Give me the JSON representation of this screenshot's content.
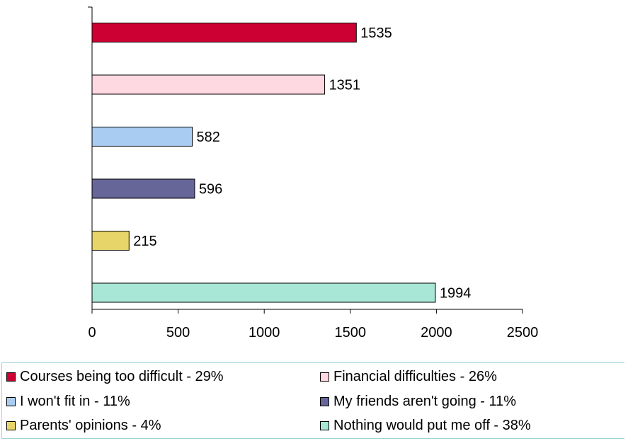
{
  "chart_data": {
    "type": "bar",
    "orientation": "horizontal",
    "categories": [
      "Courses being too difficult",
      "Financial difficulties",
      "I won't fit in",
      "My friends aren't going",
      "Parents' opinions",
      "Nothing would put me off"
    ],
    "values": [
      1535,
      1351,
      582,
      596,
      215,
      1994
    ],
    "data_labels": [
      "1535",
      "1351",
      "582",
      "596",
      "215",
      "1994"
    ],
    "colors": [
      "#cc0033",
      "#ffd9e1",
      "#a8ccf2",
      "#666699",
      "#e8d56a",
      "#a8e6d6"
    ],
    "xlim": [
      0,
      2500
    ],
    "xticks": [
      0,
      500,
      1000,
      1500,
      2000,
      2500
    ],
    "xtick_labels": [
      "0",
      "500",
      "1000",
      "1500",
      "2000",
      "2500"
    ],
    "grid": false,
    "legend_position": "bottom",
    "legend": [
      "Courses being too difficult - 29%",
      "Financial difficulties - 26%",
      "I won't fit in - 11%",
      "My friends aren't going - 11%",
      "Parents' opinions - 4%",
      "Nothing would put me off - 38%"
    ]
  }
}
